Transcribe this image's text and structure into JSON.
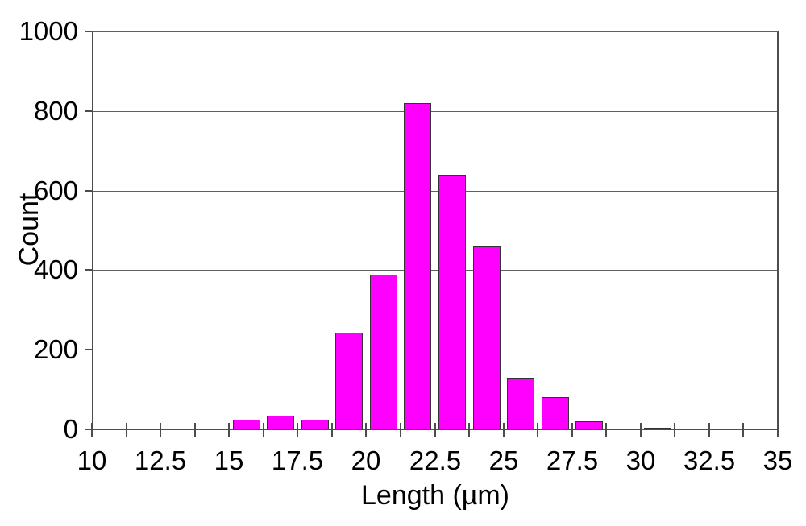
{
  "chart_data": {
    "type": "bar",
    "subtype": "histogram",
    "title": "",
    "xlabel": "Length (µm)",
    "ylabel": "Count",
    "xlim": [
      10,
      35
    ],
    "ylim": [
      0,
      1000
    ],
    "grid": "horizontal",
    "legend": "none",
    "x_major_tick_labels": [
      "10",
      "12.5",
      "15",
      "17.5",
      "20",
      "22.5",
      "25",
      "27.5",
      "30",
      "32.5",
      "35"
    ],
    "x_major_tick_values": [
      10,
      12.5,
      15,
      17.5,
      20,
      22.5,
      25,
      27.5,
      30,
      32.5,
      35
    ],
    "x_minor_tick_step": 1.25,
    "y_tick_labels": [
      "0",
      "200",
      "400",
      "600",
      "800",
      "1000"
    ],
    "y_tick_values": [
      0,
      200,
      400,
      600,
      800,
      1000
    ],
    "bin_width": 1.25,
    "bins": [
      {
        "start": 15,
        "end": 16.25,
        "count": 25
      },
      {
        "start": 16.25,
        "end": 17.5,
        "count": 35
      },
      {
        "start": 17.5,
        "end": 18.75,
        "count": 25
      },
      {
        "start": 18.75,
        "end": 20,
        "count": 243
      },
      {
        "start": 20,
        "end": 21.25,
        "count": 388
      },
      {
        "start": 21.25,
        "end": 22.5,
        "count": 820
      },
      {
        "start": 22.5,
        "end": 23.75,
        "count": 640
      },
      {
        "start": 23.75,
        "end": 25,
        "count": 460
      },
      {
        "start": 25,
        "end": 26.25,
        "count": 130
      },
      {
        "start": 26.25,
        "end": 27.5,
        "count": 80
      },
      {
        "start": 27.5,
        "end": 28.75,
        "count": 20
      },
      {
        "start": 28.75,
        "end": 30,
        "count": 0
      },
      {
        "start": 30,
        "end": 31.25,
        "count": 5
      }
    ],
    "colors": {
      "bar_fill": "#FF00FF",
      "bar_border": "#333333",
      "gridline": "#5f5f5f",
      "axis": "#4d4d4d",
      "text": "#000000",
      "background": "#ffffff"
    }
  }
}
